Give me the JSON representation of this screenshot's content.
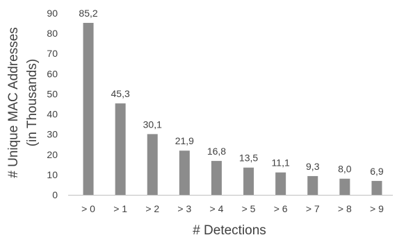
{
  "chart_data": {
    "type": "bar",
    "categories": [
      "> 0",
      "> 1",
      "> 2",
      "> 3",
      "> 4",
      "> 5",
      "> 6",
      "> 7",
      "> 8",
      "> 9"
    ],
    "values": [
      85.2,
      45.3,
      30.1,
      21.9,
      16.8,
      13.5,
      11.1,
      9.3,
      8.0,
      6.9
    ],
    "data_labels": [
      "85,2",
      "45,3",
      "30,1",
      "21,9",
      "16,8",
      "13,5",
      "11,1",
      "9,3",
      "8,0",
      "6,9"
    ],
    "ylabel_line1": "# Unique MAC Addresses",
    "ylabel_line2": "(in Thousands)",
    "xlabel": "# Detections",
    "ylim": [
      0,
      90
    ],
    "yticks": [
      0,
      10,
      20,
      30,
      40,
      50,
      60,
      70,
      80,
      90
    ],
    "grid": false,
    "bar_color": "#8c8c8c"
  }
}
